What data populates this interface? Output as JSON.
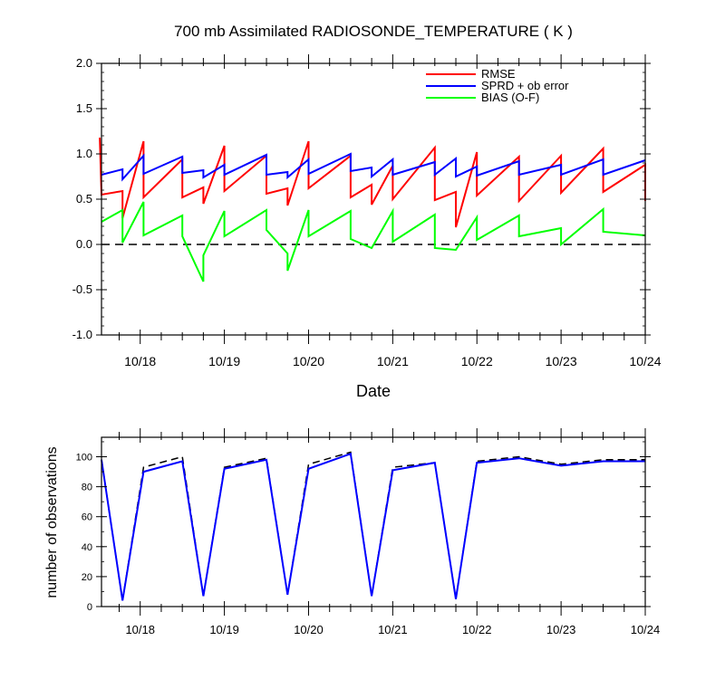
{
  "chart_data": [
    {
      "type": "line",
      "title": "700 mb Assimilated RADIOSONDE_TEMPERATURE ( K )",
      "xlabel": "Date",
      "ylabel": "",
      "ylim": [
        -1.0,
        2.0
      ],
      "yticks": [
        "-1.0",
        "-0.5",
        "0.0",
        "0.5",
        "1.0",
        "1.5",
        "2.0"
      ],
      "xticks": [
        "10/18",
        "10/19",
        "10/20",
        "10/21",
        "10/22",
        "10/23",
        "10/24"
      ],
      "xrange_days": [
        17.54,
        24.0
      ],
      "grid": false,
      "legend_position": "top-right",
      "reference_line": {
        "y": 0.0,
        "style": "dashed",
        "color": "#000000"
      },
      "series": [
        {
          "name": "RMSE",
          "color": "#ff0000",
          "points": [
            [
              17.52,
              1.18
            ],
            [
              17.54,
              0.55
            ],
            [
              17.79,
              0.59
            ],
            [
              17.79,
              0.29
            ],
            [
              18.04,
              1.14
            ],
            [
              18.04,
              0.52
            ],
            [
              18.5,
              0.94
            ],
            [
              18.5,
              0.52
            ],
            [
              18.75,
              0.63
            ],
            [
              18.75,
              0.45
            ],
            [
              19.0,
              1.09
            ],
            [
              19.0,
              0.59
            ],
            [
              19.5,
              0.98
            ],
            [
              19.5,
              0.56
            ],
            [
              19.75,
              0.62
            ],
            [
              19.75,
              0.43
            ],
            [
              20.0,
              1.14
            ],
            [
              20.0,
              0.62
            ],
            [
              20.5,
              0.98
            ],
            [
              20.5,
              0.52
            ],
            [
              20.75,
              0.66
            ],
            [
              20.75,
              0.44
            ],
            [
              21.0,
              0.87
            ],
            [
              21.0,
              0.5
            ],
            [
              21.5,
              1.07
            ],
            [
              21.5,
              0.49
            ],
            [
              21.75,
              0.58
            ],
            [
              21.75,
              0.19
            ],
            [
              22.0,
              1.02
            ],
            [
              22.0,
              0.54
            ],
            [
              22.5,
              0.97
            ],
            [
              22.5,
              0.48
            ],
            [
              23.0,
              0.98
            ],
            [
              23.0,
              0.57
            ],
            [
              23.5,
              1.06
            ],
            [
              23.5,
              0.58
            ],
            [
              24.0,
              0.88
            ],
            [
              24.0,
              0.48
            ]
          ]
        },
        {
          "name": "SPRD + ob error",
          "color": "#0000ff",
          "points": [
            [
              17.54,
              0.77
            ],
            [
              17.79,
              0.83
            ],
            [
              17.79,
              0.72
            ],
            [
              18.04,
              0.98
            ],
            [
              18.04,
              0.78
            ],
            [
              18.5,
              0.97
            ],
            [
              18.5,
              0.79
            ],
            [
              18.75,
              0.82
            ],
            [
              18.75,
              0.74
            ],
            [
              19.0,
              0.88
            ],
            [
              19.0,
              0.77
            ],
            [
              19.5,
              0.99
            ],
            [
              19.5,
              0.77
            ],
            [
              19.75,
              0.8
            ],
            [
              19.75,
              0.74
            ],
            [
              20.0,
              0.94
            ],
            [
              20.0,
              0.78
            ],
            [
              20.5,
              1.0
            ],
            [
              20.5,
              0.81
            ],
            [
              20.75,
              0.85
            ],
            [
              20.75,
              0.75
            ],
            [
              21.0,
              0.94
            ],
            [
              21.0,
              0.77
            ],
            [
              21.5,
              0.91
            ],
            [
              21.5,
              0.77
            ],
            [
              21.75,
              0.95
            ],
            [
              21.75,
              0.75
            ],
            [
              22.0,
              0.86
            ],
            [
              22.0,
              0.76
            ],
            [
              22.5,
              0.92
            ],
            [
              22.5,
              0.77
            ],
            [
              23.0,
              0.88
            ],
            [
              23.0,
              0.77
            ],
            [
              23.5,
              0.94
            ],
            [
              23.5,
              0.77
            ],
            [
              24.0,
              0.93
            ]
          ]
        },
        {
          "name": "BIAS (O-F)",
          "color": "#00ff00",
          "points": [
            [
              17.54,
              0.25
            ],
            [
              17.79,
              0.38
            ],
            [
              17.79,
              0.02
            ],
            [
              18.04,
              0.47
            ],
            [
              18.04,
              0.1
            ],
            [
              18.5,
              0.32
            ],
            [
              18.5,
              0.09
            ],
            [
              18.75,
              -0.41
            ],
            [
              18.75,
              -0.12
            ],
            [
              19.0,
              0.37
            ],
            [
              19.0,
              0.09
            ],
            [
              19.5,
              0.38
            ],
            [
              19.5,
              0.16
            ],
            [
              19.75,
              -0.1
            ],
            [
              19.75,
              -0.29
            ],
            [
              20.0,
              0.38
            ],
            [
              20.0,
              0.09
            ],
            [
              20.5,
              0.37
            ],
            [
              20.5,
              0.06
            ],
            [
              20.75,
              -0.04
            ],
            [
              21.0,
              0.37
            ],
            [
              21.0,
              0.03
            ],
            [
              21.5,
              0.33
            ],
            [
              21.5,
              -0.04
            ],
            [
              21.75,
              -0.06
            ],
            [
              22.0,
              0.3
            ],
            [
              22.0,
              0.05
            ],
            [
              22.5,
              0.32
            ],
            [
              22.5,
              0.09
            ],
            [
              23.0,
              0.18
            ],
            [
              23.0,
              0.0
            ],
            [
              23.5,
              0.39
            ],
            [
              23.5,
              0.14
            ],
            [
              24.0,
              0.1
            ]
          ]
        }
      ]
    },
    {
      "type": "line",
      "title": "",
      "xlabel": "",
      "ylabel": "number of observations",
      "ylim": [
        0,
        113
      ],
      "yticks": [
        "0",
        "20",
        "40",
        "60",
        "80",
        "100"
      ],
      "xticks": [
        "10/18",
        "10/19",
        "10/20",
        "10/21",
        "10/22",
        "10/23",
        "10/24"
      ],
      "xrange_days": [
        17.54,
        24.0
      ],
      "grid": false,
      "series": [
        {
          "color": "#000000",
          "style": "dashed",
          "points": [
            [
              17.54,
              98
            ],
            [
              17.79,
              4
            ],
            [
              18.04,
              93
            ],
            [
              18.5,
              100
            ],
            [
              18.75,
              7
            ],
            [
              19.0,
              93
            ],
            [
              19.5,
              99
            ],
            [
              19.75,
              8
            ],
            [
              20.0,
              95
            ],
            [
              20.5,
              103
            ],
            [
              20.75,
              7
            ],
            [
              21.0,
              93
            ],
            [
              21.5,
              96
            ],
            [
              21.75,
              5
            ],
            [
              22.0,
              97
            ],
            [
              22.5,
              100
            ],
            [
              23.0,
              95
            ],
            [
              23.5,
              98
            ],
            [
              24.0,
              98
            ]
          ]
        },
        {
          "color": "#0000ff",
          "style": "solid",
          "points": [
            [
              17.54,
              98
            ],
            [
              17.79,
              4
            ],
            [
              18.04,
              90
            ],
            [
              18.5,
              97
            ],
            [
              18.75,
              7
            ],
            [
              19.0,
              92
            ],
            [
              19.5,
              98
            ],
            [
              19.75,
              8
            ],
            [
              20.0,
              92
            ],
            [
              20.5,
              102
            ],
            [
              20.75,
              7
            ],
            [
              21.0,
              91
            ],
            [
              21.5,
              96
            ],
            [
              21.75,
              5
            ],
            [
              22.0,
              96
            ],
            [
              22.5,
              99
            ],
            [
              23.0,
              94
            ],
            [
              23.5,
              97
            ],
            [
              24.0,
              97
            ]
          ]
        }
      ]
    }
  ]
}
